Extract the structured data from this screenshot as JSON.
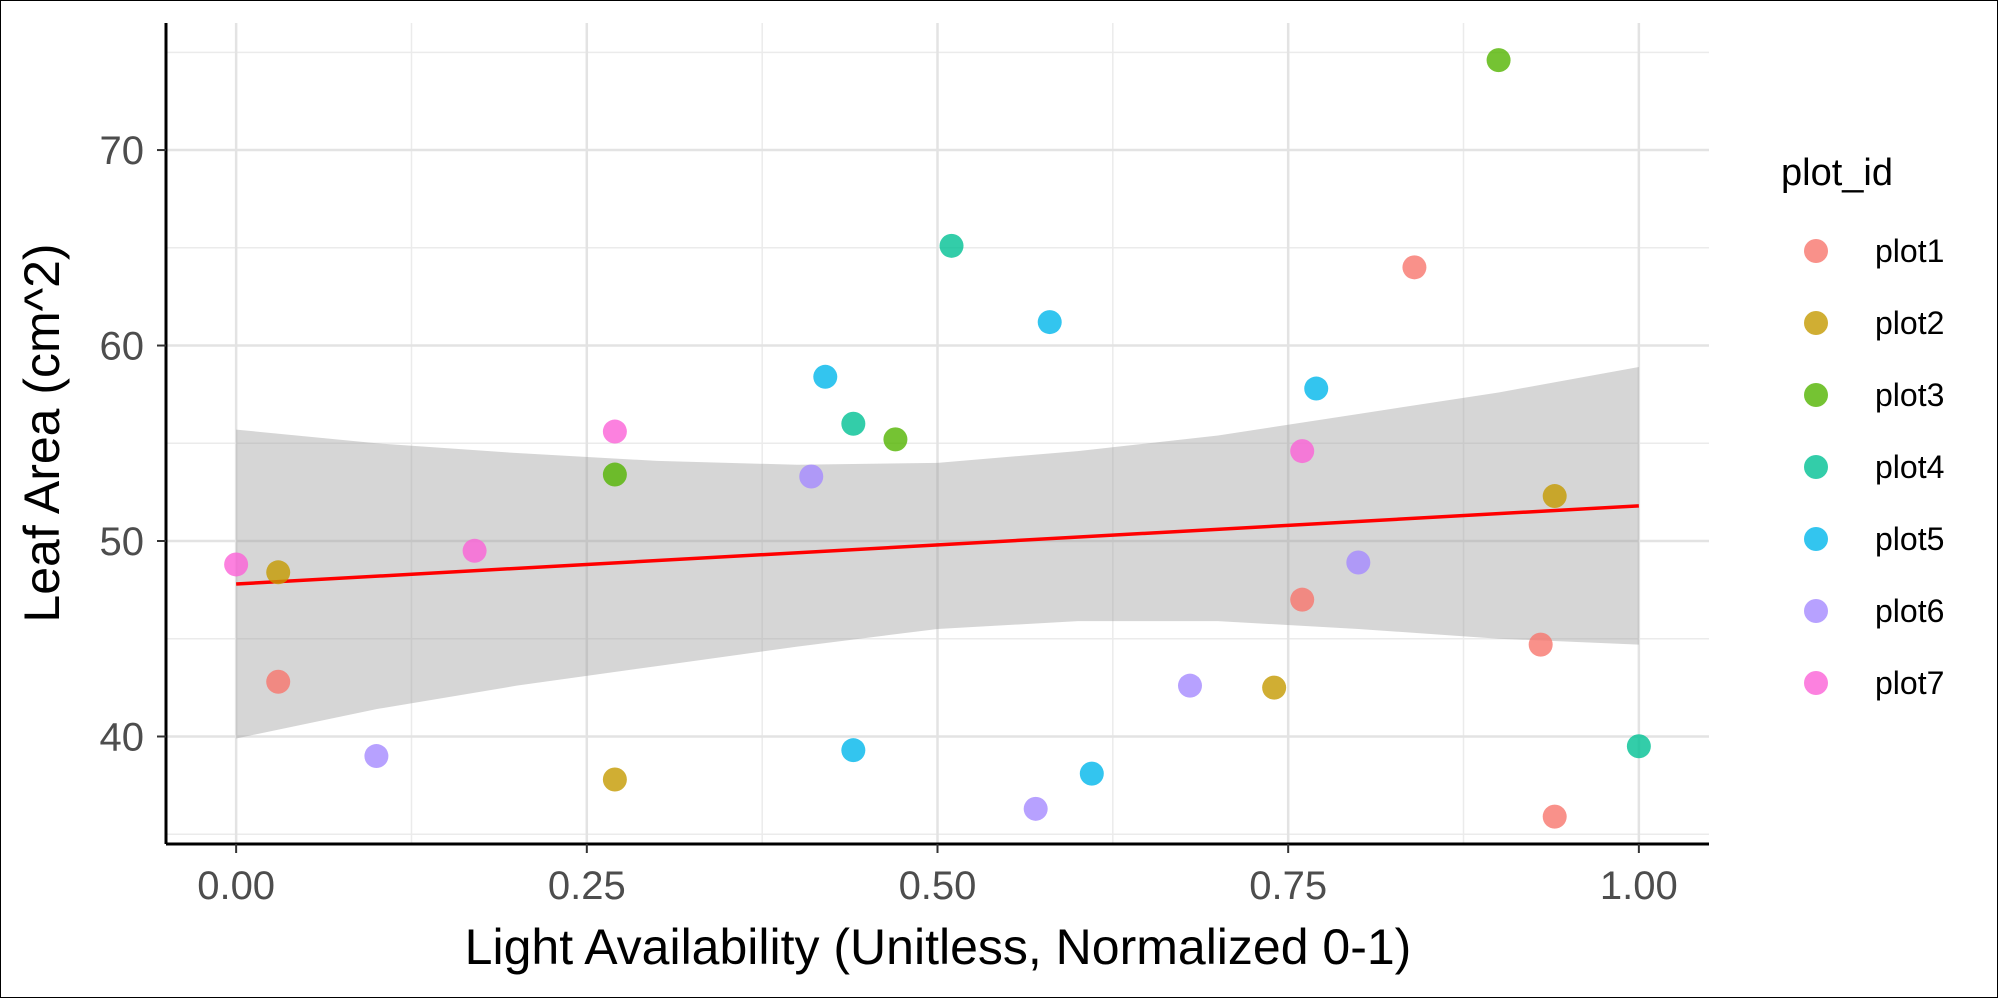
{
  "chart_data": {
    "type": "scatter",
    "xlabel": "Light Availability (Unitless, Normalized 0-1)",
    "ylabel": "Leaf Area (cm^2)",
    "xlim": [
      -0.05,
      1.05
    ],
    "ylim": [
      34.5,
      76.5
    ],
    "x_ticks": [
      0,
      0.25,
      0.5,
      0.75,
      1
    ],
    "x_tick_labels": [
      "0.00",
      "0.25",
      "0.50",
      "0.75",
      "1.00"
    ],
    "y_ticks": [
      40,
      50,
      60,
      70
    ],
    "y_tick_labels": [
      "40",
      "50",
      "60",
      "70"
    ],
    "grid": true,
    "legend": {
      "title": "plot_id",
      "position": "right"
    },
    "series": [
      {
        "name": "plot1",
        "color": "#F8766D",
        "points": [
          [
            0.03,
            42.8
          ],
          [
            0.76,
            47.0
          ],
          [
            0.84,
            64.0
          ],
          [
            0.93,
            44.7
          ],
          [
            0.94,
            35.9
          ]
        ]
      },
      {
        "name": "plot2",
        "color": "#C49A00",
        "points": [
          [
            0.03,
            48.4
          ],
          [
            0.27,
            37.8
          ],
          [
            0.74,
            42.5
          ],
          [
            0.94,
            52.3
          ]
        ]
      },
      {
        "name": "plot3",
        "color": "#53B400",
        "points": [
          [
            0.27,
            53.4
          ],
          [
            0.47,
            55.2
          ],
          [
            0.9,
            74.6
          ]
        ]
      },
      {
        "name": "plot4",
        "color": "#00C094",
        "points": [
          [
            0.44,
            56.0
          ],
          [
            0.51,
            65.1
          ],
          [
            1.0,
            39.5
          ]
        ]
      },
      {
        "name": "plot5",
        "color": "#00B6EB",
        "points": [
          [
            0.42,
            58.4
          ],
          [
            0.44,
            39.3
          ],
          [
            0.58,
            61.2
          ],
          [
            0.61,
            38.1
          ],
          [
            0.77,
            57.8
          ]
        ]
      },
      {
        "name": "plot6",
        "color": "#A58AFF",
        "points": [
          [
            0.1,
            39.0
          ],
          [
            0.41,
            53.3
          ],
          [
            0.57,
            36.3
          ],
          [
            0.68,
            42.6
          ],
          [
            0.8,
            48.9
          ]
        ]
      },
      {
        "name": "plot7",
        "color": "#FB61D7",
        "points": [
          [
            0.0,
            48.8
          ],
          [
            0.17,
            49.5
          ],
          [
            0.27,
            55.6
          ],
          [
            0.76,
            54.6
          ]
        ]
      }
    ],
    "fit_line": {
      "color": "#FF0000",
      "x": [
        0,
        1
      ],
      "y": [
        47.8,
        51.8
      ]
    },
    "confidence_band": {
      "color": "#999999",
      "x": [
        0,
        0.1,
        0.2,
        0.3,
        0.4,
        0.5,
        0.6,
        0.7,
        0.8,
        0.9,
        1.0
      ],
      "upper": [
        55.7,
        55.0,
        54.5,
        54.1,
        53.9,
        54.0,
        54.6,
        55.4,
        56.5,
        57.6,
        58.9
      ],
      "lower": [
        39.9,
        41.4,
        42.6,
        43.6,
        44.6,
        45.5,
        45.9,
        45.9,
        45.5,
        45.0,
        44.7
      ]
    }
  }
}
